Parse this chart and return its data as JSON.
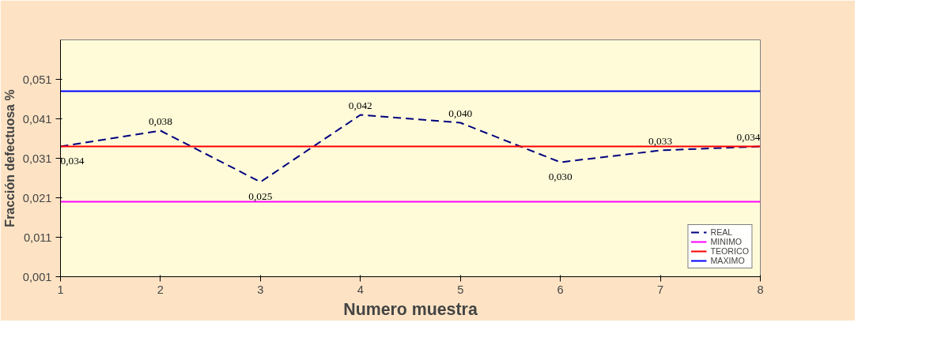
{
  "chart_data": {
    "type": "line",
    "xlabel": "Numero muestra",
    "ylabel": "Fracción defectuosa %",
    "x": [
      1,
      2,
      3,
      4,
      5,
      6,
      7,
      8
    ],
    "series": [
      {
        "name": "REAL",
        "color": "#000080",
        "line_style": "dashed",
        "values": [
          0.034,
          0.038,
          0.025,
          0.042,
          0.04,
          0.03,
          0.033,
          0.034
        ],
        "value_labels": [
          "0,034",
          "0,038",
          "0,025",
          "0,042",
          "0,040",
          "0,030",
          "0,033",
          "0,034"
        ]
      },
      {
        "name": "MINIMO",
        "color": "#ff00ff",
        "line_style": "solid",
        "values": [
          0.02,
          0.02,
          0.02,
          0.02,
          0.02,
          0.02,
          0.02,
          0.02
        ]
      },
      {
        "name": "TEORICO",
        "color": "#ff0000",
        "line_style": "solid",
        "values": [
          0.034,
          0.034,
          0.034,
          0.034,
          0.034,
          0.034,
          0.034,
          0.034
        ]
      },
      {
        "name": "MAXIMO",
        "color": "#0000ff",
        "line_style": "solid",
        "values": [
          0.048,
          0.048,
          0.048,
          0.048,
          0.048,
          0.048,
          0.048,
          0.048
        ]
      }
    ],
    "xlim": [
      1,
      8
    ],
    "xticks": [
      1,
      2,
      3,
      4,
      5,
      6,
      7,
      8
    ],
    "ylim": [
      0.001,
      0.061
    ],
    "yticks": [
      {
        "value": 0.001,
        "label": "0,001"
      },
      {
        "value": 0.011,
        "label": "0,011"
      },
      {
        "value": 0.021,
        "label": "0,021"
      },
      {
        "value": 0.031,
        "label": "0,031"
      },
      {
        "value": 0.041,
        "label": "0,041"
      },
      {
        "value": 0.051,
        "label": "0,051"
      }
    ],
    "marker": "none",
    "grid": false,
    "legend": "bottom right"
  }
}
